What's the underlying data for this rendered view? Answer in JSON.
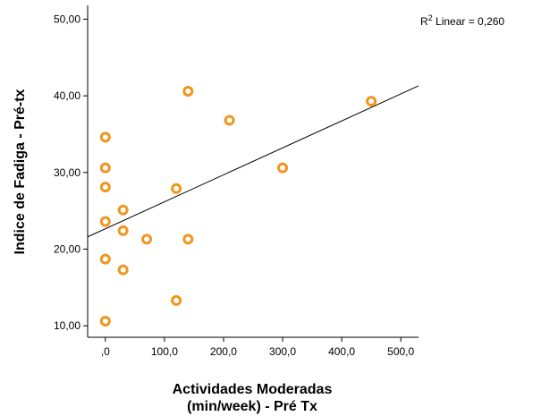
{
  "chart_data": {
    "type": "scatter",
    "xlabel_line1": "Actividades Moderadas",
    "xlabel_line2": "(min/week) - Pré Tx",
    "ylabel": "Indice de Fadiga - Pré-tx",
    "xlim": [
      -30,
      530
    ],
    "ylim": [
      8.5,
      51.8
    ],
    "x_ticks": [
      0,
      100,
      200,
      300,
      400,
      500
    ],
    "x_tick_labels": [
      ",0",
      "100,0",
      "200,0",
      "300,0",
      "400,0",
      "500,0"
    ],
    "y_ticks": [
      10,
      20,
      30,
      40,
      50
    ],
    "y_tick_labels": [
      "10,00",
      "20,00",
      "30,00",
      "40,00",
      "50,00"
    ],
    "points": [
      {
        "x": 0,
        "y": 10.6
      },
      {
        "x": 0,
        "y": 18.7
      },
      {
        "x": 0,
        "y": 23.6
      },
      {
        "x": 0,
        "y": 28.1
      },
      {
        "x": 0,
        "y": 30.6
      },
      {
        "x": 0,
        "y": 34.6
      },
      {
        "x": 30,
        "y": 17.3
      },
      {
        "x": 30,
        "y": 22.4
      },
      {
        "x": 30,
        "y": 25.1
      },
      {
        "x": 70,
        "y": 21.3
      },
      {
        "x": 120,
        "y": 13.3
      },
      {
        "x": 120,
        "y": 27.9
      },
      {
        "x": 140,
        "y": 21.3
      },
      {
        "x": 140,
        "y": 40.6
      },
      {
        "x": 210,
        "y": 36.8
      },
      {
        "x": 300,
        "y": 30.6
      },
      {
        "x": 450,
        "y": 39.3
      }
    ],
    "fit_line": {
      "x": [
        -30,
        530
      ],
      "y": [
        21.6,
        41.3
      ]
    },
    "r2_label_prefix": "R",
    "r2_label_sup": "2",
    "r2_label_suffix": " Linear = 0,260",
    "marker_color": "#f0961e",
    "line_color": "#000000",
    "grid": false
  }
}
